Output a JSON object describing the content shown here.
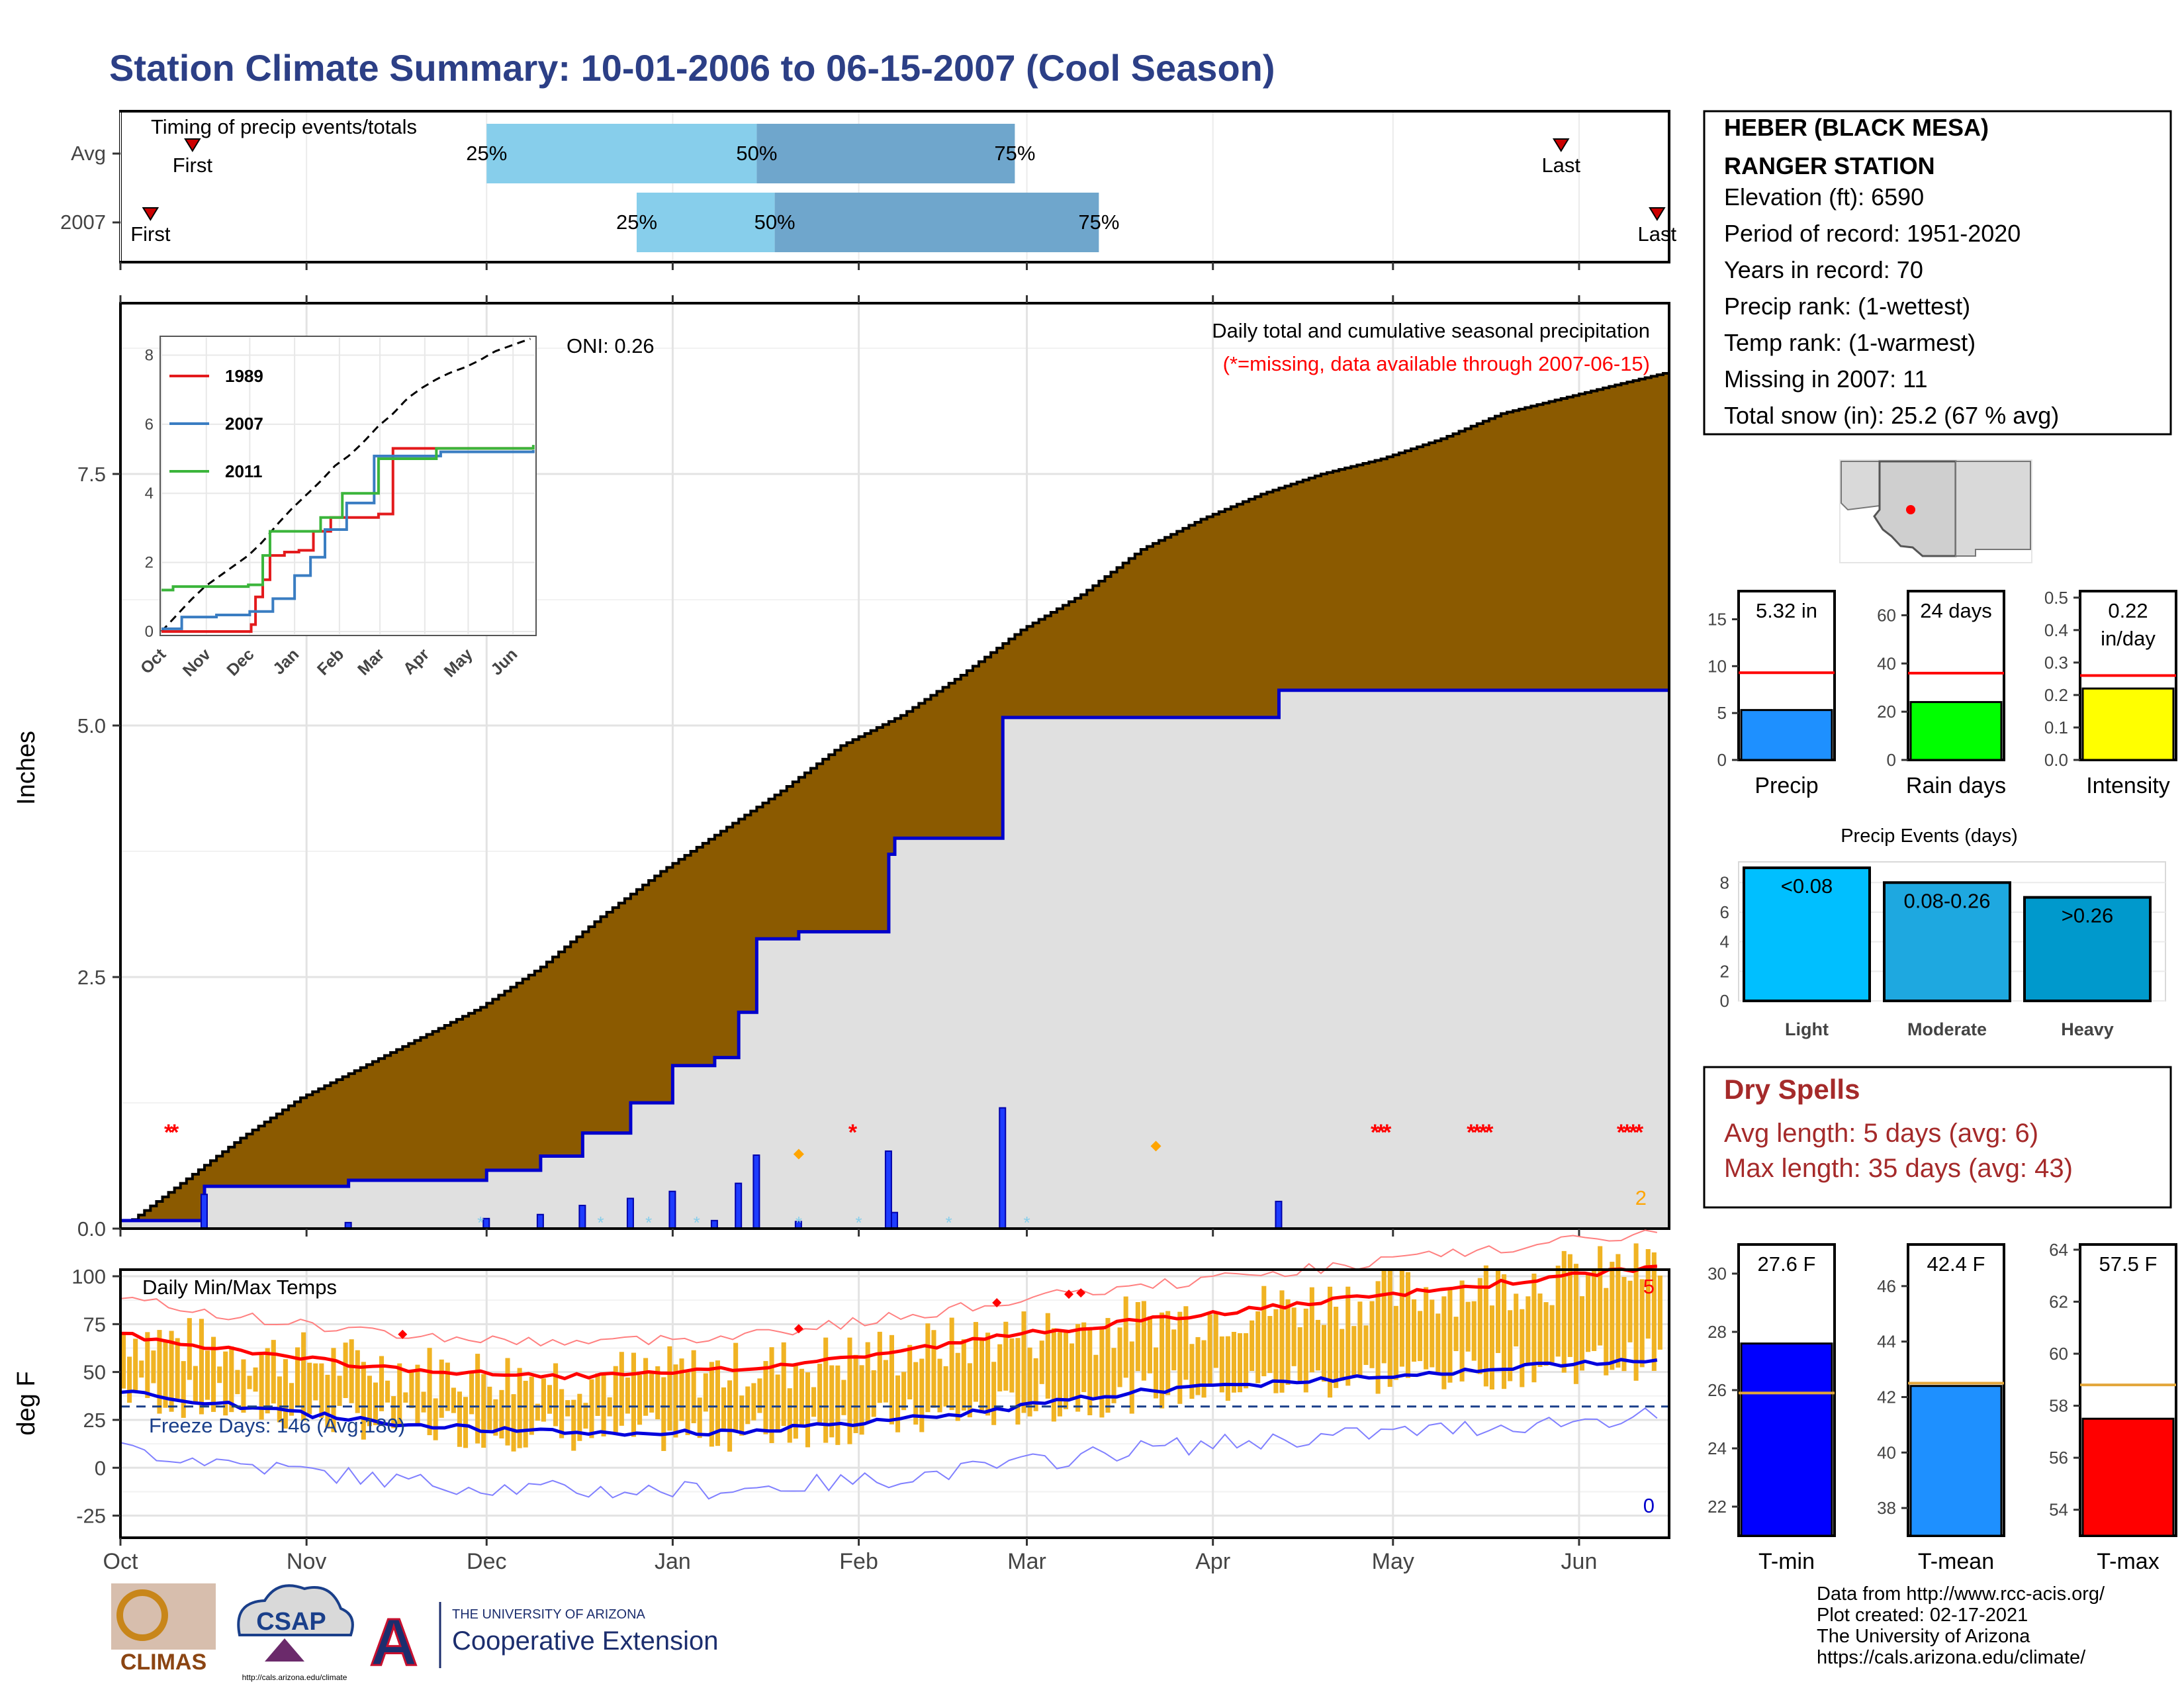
{
  "page": {
    "title": "Station Climate Summary: 10-01-2006 to 06-15-2007 (Cool Season)"
  },
  "timing_panel": {
    "title": "Timing of precip events/totals",
    "rows": [
      {
        "label": "Avg",
        "first_label": "First",
        "last_label": "Last",
        "p25_label": "25%",
        "p50_label": "50%",
        "p75_label": "75%",
        "first_day": 12,
        "last_day": 240,
        "p25_day": 61,
        "p50_day": 106,
        "p75_day": 149
      },
      {
        "label": "2007",
        "first_label": "First",
        "last_label": "Last",
        "p25_label": "25%",
        "p50_label": "50%",
        "p75_label": "75%",
        "first_day": 5,
        "last_day": 256,
        "p25_day": 86,
        "p50_day": 109,
        "p75_day": 163
      }
    ],
    "colors": {
      "light": "#87ceeb",
      "dark": "#6fa6cc",
      "marker": "#cc0000"
    }
  },
  "station_box": {
    "name_line1": "HEBER (BLACK MESA)",
    "name_line2": "RANGER STATION",
    "lines": [
      "Elevation (ft): 6590",
      "Period of record: 1951-2020",
      "Years in record: 70",
      "Precip rank:  (1-wettest)",
      "Temp rank:  (1-warmest)",
      "Missing in 2007: 11",
      "Total snow (in): 25.2 (67 % avg)"
    ]
  },
  "main_panel": {
    "ylabel": "Inches",
    "annotation_title": "Daily total and cumulative seasonal precipitation",
    "annotation_missing": "(*=missing, data available through 2007-06-15)",
    "oni_label": "ONI: 0.26",
    "count_label": "2",
    "yticks": [
      "0.0",
      "2.5",
      "5.0",
      "7.5"
    ],
    "colors": {
      "cumavg": "#8b5a00",
      "cum2007": "#0000cc",
      "fill2007": "#e0e0e0",
      "missing": "#ff0000",
      "snow": "#87ceeb",
      "extreme": "#ffa500"
    }
  },
  "inset": {
    "yticks": [
      "0",
      "2",
      "4",
      "6",
      "8"
    ],
    "months": [
      "Oct",
      "Nov",
      "Dec",
      "Jan",
      "Feb",
      "Mar",
      "Apr",
      "May",
      "Jun"
    ],
    "legend": [
      {
        "name": "1989",
        "color": "#e31a1c"
      },
      {
        "name": "2007",
        "color": "#3a7dc2"
      },
      {
        "name": "2011",
        "color": "#3bb53b"
      }
    ]
  },
  "temp_panel": {
    "ylabel": "deg F",
    "title": "Daily Min/Max Temps",
    "freeze_label": "Freeze Days: 146 (Avg:180)",
    "hot_count": "5",
    "cold_count": "0",
    "yticks": [
      "100",
      "75",
      "50",
      "25",
      "0",
      "-25"
    ],
    "months": [
      "Oct",
      "Nov",
      "Dec",
      "Jan",
      "Feb",
      "Mar",
      "Apr",
      "May",
      "Jun"
    ]
  },
  "chart_data": [
    {
      "type": "area",
      "title": "Daily total and cumulative seasonal precipitation",
      "ylabel": "Inches",
      "ylim": [
        0,
        9.25
      ],
      "x_unit": "days since Oct 1",
      "series": [
        {
          "name": "avg cumulative",
          "x": [
            0,
            10,
            20,
            30,
            40,
            50,
            60,
            70,
            80,
            90,
            100,
            110,
            120,
            130,
            140,
            150,
            160,
            170,
            180,
            190,
            200,
            210,
            220,
            230,
            240,
            250,
            257
          ],
          "values": [
            0,
            0.45,
            0.9,
            1.3,
            1.6,
            1.9,
            2.2,
            2.6,
            3.1,
            3.55,
            3.95,
            4.35,
            4.8,
            5.1,
            5.5,
            5.95,
            6.3,
            6.75,
            7.05,
            7.3,
            7.5,
            7.65,
            7.85,
            8.1,
            8.25,
            8.4,
            8.5
          ]
        },
        {
          "name": "2007 cumulative",
          "x": [
            0,
            13,
            14,
            38,
            61,
            70,
            77,
            85,
            92,
            99,
            103,
            106,
            113,
            128,
            129,
            147,
            149,
            193,
            257
          ],
          "values": [
            0.08,
            0.08,
            0.42,
            0.48,
            0.58,
            0.72,
            0.95,
            1.25,
            1.62,
            1.7,
            2.15,
            2.88,
            2.95,
            3.72,
            3.88,
            5.08,
            5.08,
            5.35,
            5.35
          ]
        }
      ]
    },
    {
      "type": "bar",
      "title": "Station totals vs average",
      "categories": [
        "Precip",
        "Rain days",
        "Intensity"
      ],
      "values": [
        5.32,
        24,
        0.22
      ],
      "labels": [
        "5.32 in",
        "24 days",
        "0.22 in/day"
      ],
      "averages": [
        9.3,
        36,
        0.26
      ]
    },
    {
      "type": "bar",
      "title": "Precip Events (days)",
      "categories": [
        "Light",
        "Moderate",
        "Heavy"
      ],
      "labels": [
        "<0.08",
        "0.08-0.26",
        ">0.26"
      ],
      "values": [
        9,
        8,
        7
      ],
      "ylim": [
        0,
        9
      ]
    },
    {
      "type": "bar",
      "title": "Temperature",
      "categories": [
        "T-min",
        "T-mean",
        "T-max"
      ],
      "values": [
        27.6,
        42.4,
        57.5
      ],
      "labels": [
        "27.6 F",
        "42.4 F",
        "57.5 F"
      ],
      "averages": [
        25.9,
        42.5,
        58.8
      ],
      "colors": [
        "#0000ff",
        "#1e90ff",
        "#ff0000"
      ]
    }
  ],
  "small_bars": [
    {
      "label": "Precip",
      "value_label": "5.32 in",
      "value": 5.32,
      "avg": 9.3,
      "ymax": 18,
      "yticks": [
        0,
        5,
        10,
        15
      ],
      "color": "#1e90ff"
    },
    {
      "label": "Rain days",
      "value_label": "24 days",
      "value": 24,
      "avg": 36,
      "ymax": 70,
      "yticks": [
        0,
        20,
        40,
        60
      ],
      "color": "#00ff00"
    },
    {
      "label": "Intensity",
      "value_label": "0.22 in/day",
      "value_line1": "0.22",
      "value_line2": "in/day",
      "value": 0.22,
      "avg": 0.26,
      "ymax": 0.52,
      "yticks": [
        "0.0",
        "0.1",
        "0.2",
        "0.3",
        "0.4",
        "0.5"
      ],
      "color": "#ffff00"
    }
  ],
  "events_panel": {
    "title": "Precip Events (days)",
    "categories": [
      "Light",
      "Moderate",
      "Heavy"
    ],
    "bar_labels": [
      "<0.08",
      "0.08-0.26",
      ">0.26"
    ],
    "values": [
      9,
      8,
      7
    ],
    "yticks": [
      "0",
      "2",
      "4",
      "6",
      "8"
    ],
    "colors": [
      "#00bfff",
      "#1ea8e0",
      "#0099cc"
    ]
  },
  "dry_spells": {
    "title": "Dry Spells",
    "line1": "Avg length: 5 days (avg: 6)",
    "line2": "Max length: 35 days (avg: 43)"
  },
  "temp_bars": [
    {
      "label": "T-min",
      "value_label": "27.6 F",
      "value": 27.6,
      "avg": 25.9,
      "ymin": 21,
      "ymax": 31,
      "yticks": [
        22,
        24,
        26,
        28,
        30
      ],
      "color": "#0000ff"
    },
    {
      "label": "T-mean",
      "value_label": "42.4 F",
      "value": 42.4,
      "avg": 42.5,
      "ymin": 37,
      "ymax": 47.5,
      "yticks": [
        38,
        40,
        42,
        44,
        46
      ],
      "color": "#1e90ff"
    },
    {
      "label": "T-max",
      "value_label": "57.5 F",
      "value": 57.5,
      "avg": 58.8,
      "ymin": 53,
      "ymax": 64.2,
      "yticks": [
        54,
        56,
        58,
        60,
        62,
        64
      ],
      "color": "#ff0000"
    }
  ],
  "footer": {
    "credits": [
      "Data from http://www.rcc-acis.org/",
      "Plot created: 02-17-2021",
      "The University of Arizona",
      "https://cals.arizona.edu/climate/"
    ],
    "logo_climas": "CLIMAS",
    "logo_csap": "CSAP",
    "logo_csap_url": "http://cals.arizona.edu/climate",
    "logo_ua_top": "THE UNIVERSITY OF ARIZONA",
    "logo_ua_bottom": "Cooperative Extension",
    "logo_ua_letter": "A"
  }
}
